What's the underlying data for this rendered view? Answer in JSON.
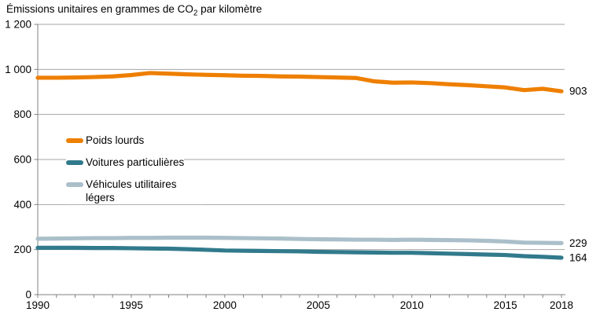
{
  "title": {
    "prefix": "Émissions unitaires en grammes de CO",
    "sub": "2",
    "suffix": " par kilomètre"
  },
  "colors": {
    "axis": "#808080",
    "grid": "#a6a6a6",
    "text": "#000000",
    "background": "#ffffff",
    "poids_lourds": "#ee7f00",
    "voitures_particulieres": "#317a8c",
    "vehicules_utilitaires_legers": "#aabfc9"
  },
  "chart_data": {
    "type": "line",
    "title": "Émissions unitaires en grammes de CO2 par kilomètre",
    "xlabel": "",
    "ylabel": "",
    "xlim": [
      1990,
      2018
    ],
    "ylim": [
      0,
      1200
    ],
    "grid": "horizontal",
    "legend_position": "inside-left",
    "x": [
      1990,
      1991,
      1992,
      1993,
      1994,
      1995,
      1996,
      1997,
      1998,
      1999,
      2000,
      2001,
      2002,
      2003,
      2004,
      2005,
      2006,
      2007,
      2008,
      2009,
      2010,
      2011,
      2012,
      2013,
      2014,
      2015,
      2016,
      2017,
      2018
    ],
    "x_tick_labels": [
      "1990",
      "1995",
      "2000",
      "2005",
      "2010",
      "2015",
      "2018"
    ],
    "y_ticks": [
      0,
      200,
      400,
      600,
      800,
      1000,
      1200
    ],
    "y_tick_labels": [
      "0",
      "200",
      "400",
      "600",
      "800",
      "1 000",
      "1 200"
    ],
    "series": [
      {
        "name": "Poids lourds",
        "color": "#ee7f00",
        "end_label": "903",
        "values": [
          963,
          963,
          964,
          966,
          969,
          975,
          984,
          981,
          978,
          976,
          974,
          972,
          971,
          969,
          968,
          966,
          964,
          962,
          947,
          941,
          942,
          939,
          934,
          930,
          925,
          920,
          908,
          914,
          903
        ]
      },
      {
        "name": "Voitures particulières",
        "color": "#317a8c",
        "end_label": "164",
        "values": [
          208,
          208,
          208,
          207,
          207,
          206,
          205,
          204,
          202,
          199,
          196,
          195,
          194,
          193,
          192,
          190,
          189,
          188,
          187,
          186,
          186,
          184,
          182,
          180,
          178,
          176,
          171,
          168,
          164
        ]
      },
      {
        "name": "Véhicules utilitaires légers",
        "color": "#aabfc9",
        "end_label": "229",
        "values": [
          248,
          249,
          250,
          251,
          251,
          252,
          252,
          253,
          253,
          253,
          252,
          251,
          250,
          249,
          247,
          246,
          245,
          244,
          244,
          243,
          244,
          243,
          242,
          241,
          239,
          236,
          231,
          230,
          229
        ]
      }
    ]
  }
}
